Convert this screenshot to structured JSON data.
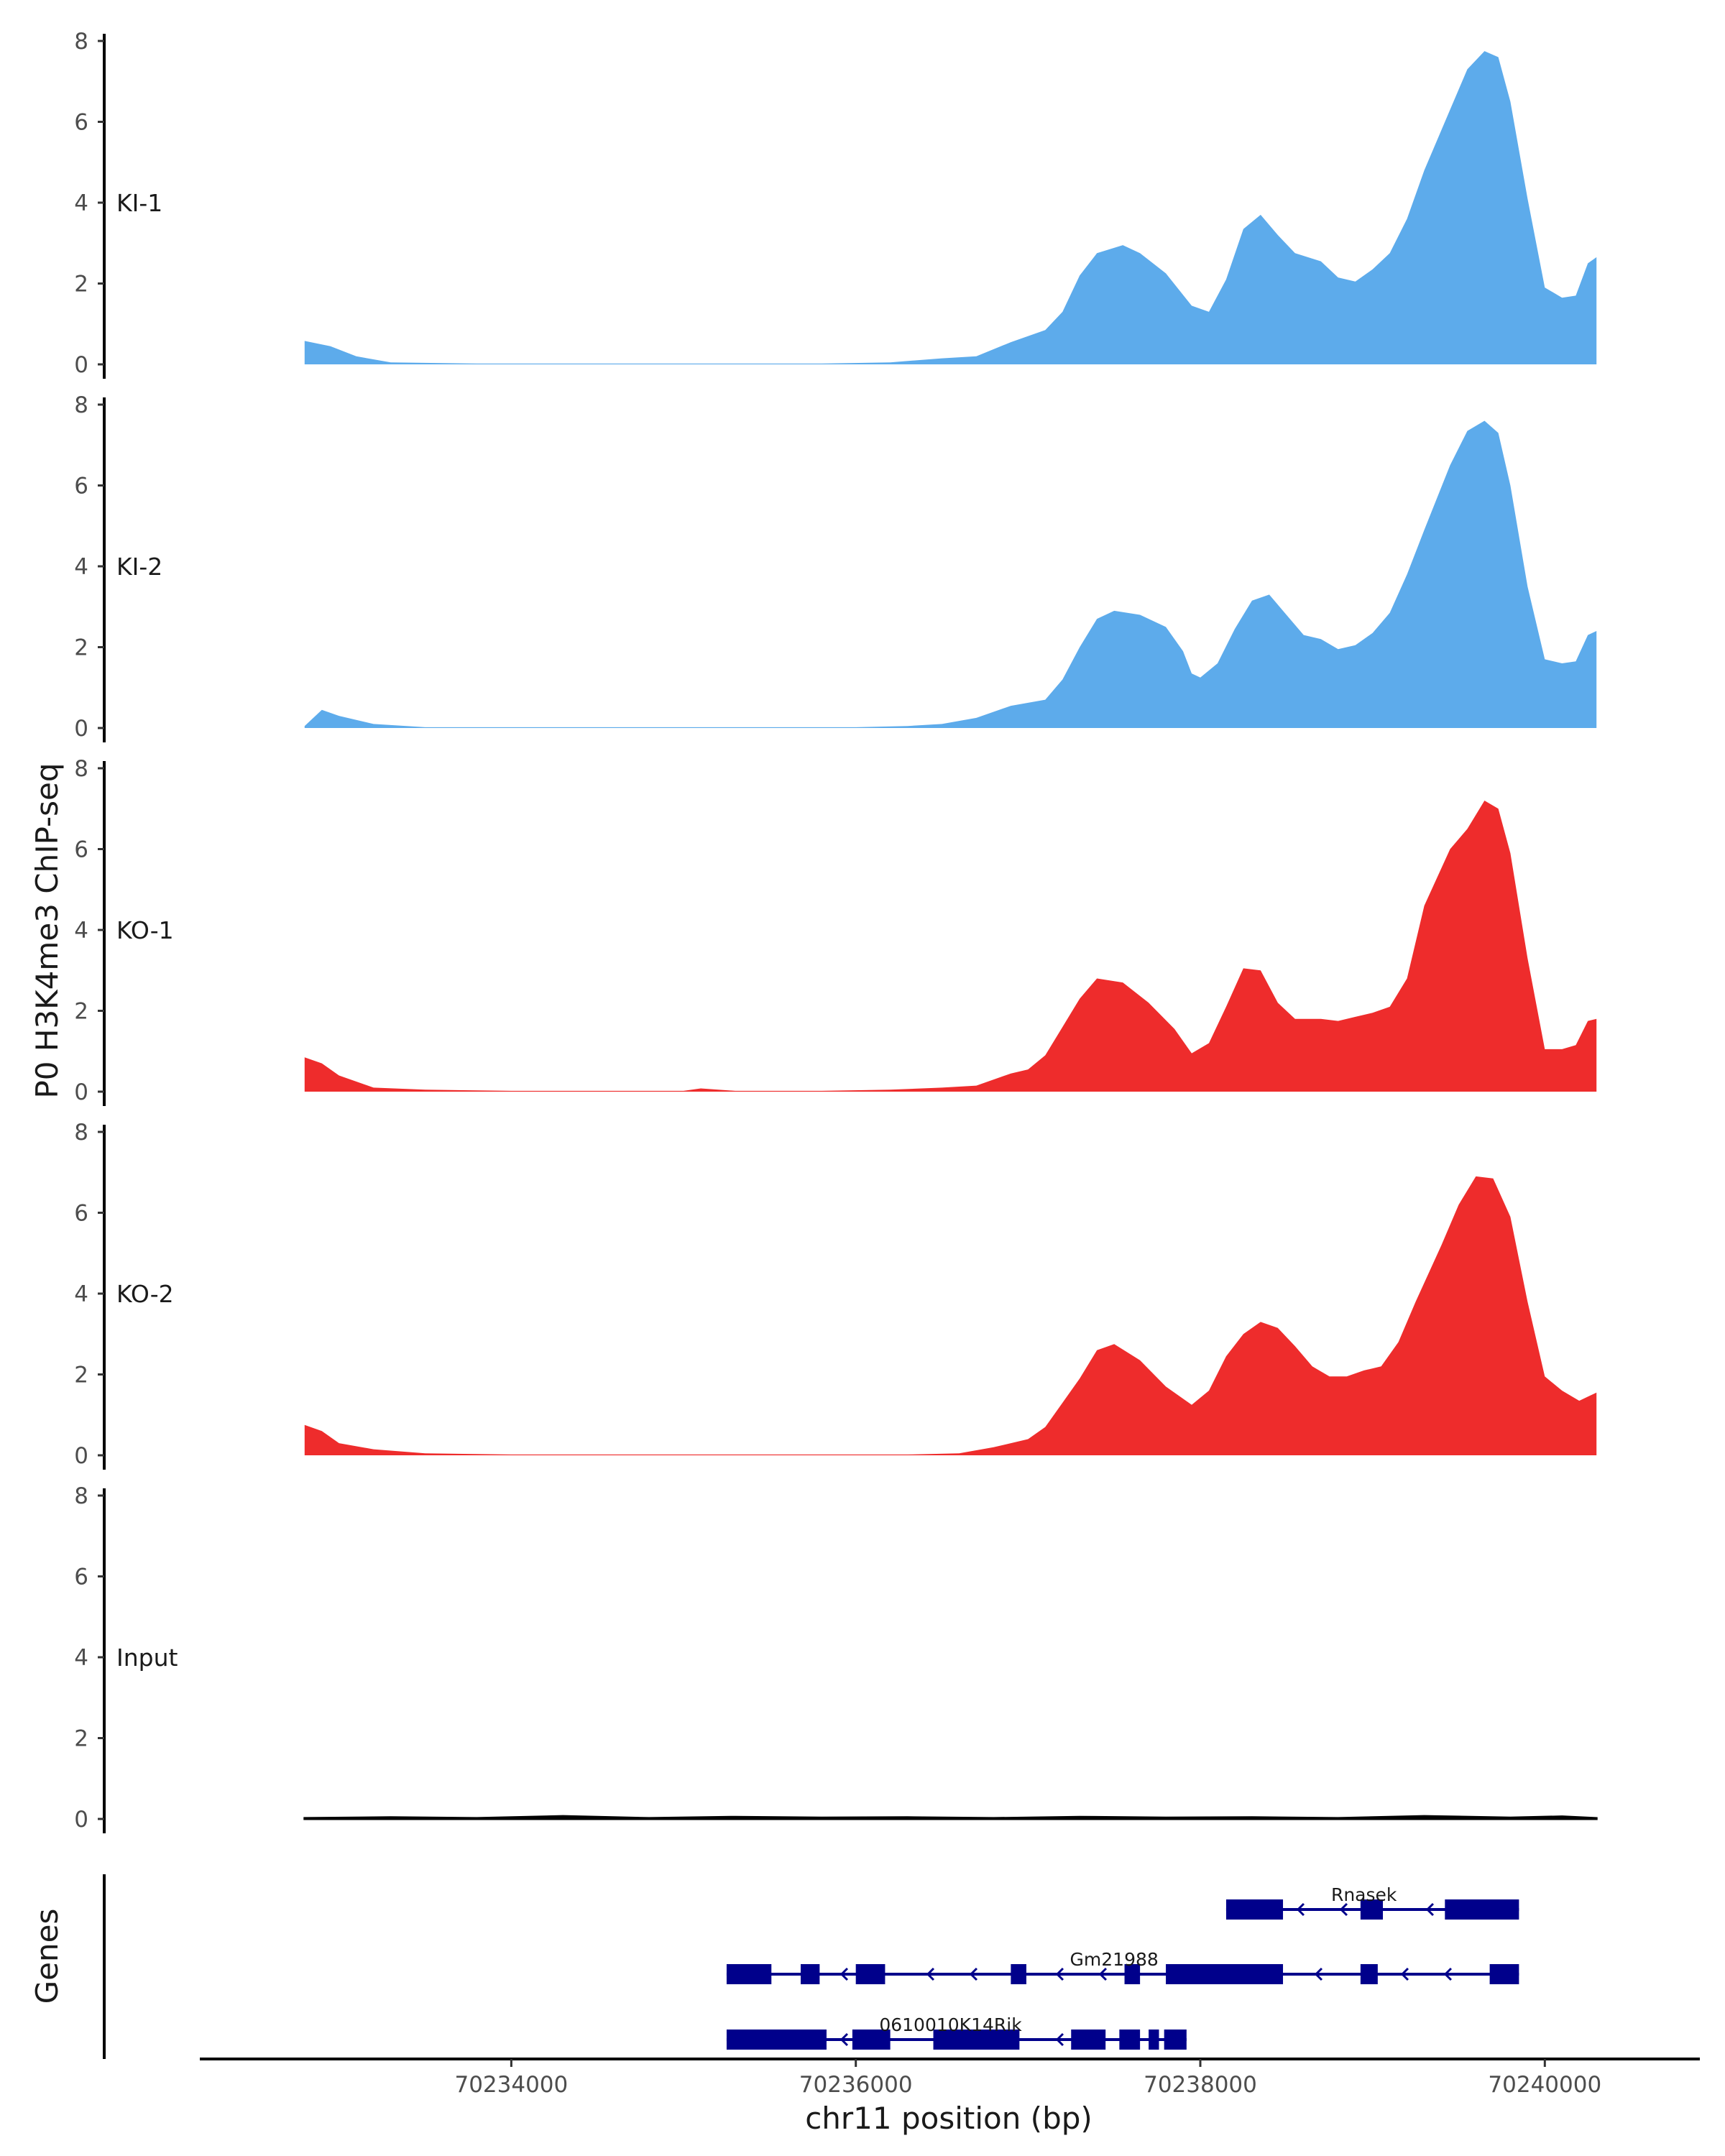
{
  "chart_data": {
    "type": "area",
    "title": "",
    "ylabel": "P0 H3K4me3 ChIP-seq",
    "xlabel": "chr11 position (bp)",
    "gene_track_label": "Genes",
    "ylim": [
      0,
      8
    ],
    "y_ticks": [
      "0",
      "2",
      "4",
      "6",
      "8"
    ],
    "xlim": [
      70232200,
      70240900
    ],
    "x_ticks": [
      70234000,
      70236000,
      70238000,
      70240000
    ],
    "x_tick_labels": [
      "70234000",
      "70236000",
      "70238000",
      "70240000"
    ],
    "data_range": [
      70232800,
      70240300
    ],
    "colors": {
      "KI": "#5dabeb",
      "KO": "#ee2c2c",
      "Input": "#000000",
      "gene": "#00008b"
    },
    "tracks": [
      {
        "name": "KI-1",
        "color": "#5dabeb",
        "points": [
          [
            70232800,
            0.58
          ],
          [
            70232950,
            0.45
          ],
          [
            70233100,
            0.2
          ],
          [
            70233300,
            0.05
          ],
          [
            70233800,
            0.02
          ],
          [
            70234300,
            0.02
          ],
          [
            70234800,
            0.02
          ],
          [
            70235300,
            0.02
          ],
          [
            70235800,
            0.02
          ],
          [
            70236200,
            0.05
          ],
          [
            70236500,
            0.15
          ],
          [
            70236700,
            0.2
          ],
          [
            70236900,
            0.55
          ],
          [
            70237100,
            0.85
          ],
          [
            70237200,
            1.3
          ],
          [
            70237300,
            2.2
          ],
          [
            70237400,
            2.75
          ],
          [
            70237550,
            2.95
          ],
          [
            70237650,
            2.75
          ],
          [
            70237800,
            2.25
          ],
          [
            70237950,
            1.45
          ],
          [
            70238050,
            1.3
          ],
          [
            70238150,
            2.1
          ],
          [
            70238250,
            3.35
          ],
          [
            70238350,
            3.7
          ],
          [
            70238450,
            3.2
          ],
          [
            70238550,
            2.75
          ],
          [
            70238700,
            2.55
          ],
          [
            70238800,
            2.15
          ],
          [
            70238900,
            2.05
          ],
          [
            70239000,
            2.35
          ],
          [
            70239100,
            2.75
          ],
          [
            70239200,
            3.6
          ],
          [
            70239300,
            4.8
          ],
          [
            70239450,
            6.3
          ],
          [
            70239550,
            7.3
          ],
          [
            70239650,
            7.75
          ],
          [
            70239730,
            7.6
          ],
          [
            70239800,
            6.5
          ],
          [
            70239900,
            4.1
          ],
          [
            70240000,
            1.9
          ],
          [
            70240100,
            1.65
          ],
          [
            70240180,
            1.7
          ],
          [
            70240250,
            2.5
          ],
          [
            70240300,
            2.65
          ]
        ]
      },
      {
        "name": "KI-2",
        "color": "#5dabeb",
        "points": [
          [
            70232800,
            0.05
          ],
          [
            70232900,
            0.45
          ],
          [
            70233000,
            0.3
          ],
          [
            70233200,
            0.1
          ],
          [
            70233500,
            0.02
          ],
          [
            70234000,
            0.02
          ],
          [
            70234500,
            0.02
          ],
          [
            70235000,
            0.02
          ],
          [
            70235500,
            0.02
          ],
          [
            70236000,
            0.02
          ],
          [
            70236300,
            0.05
          ],
          [
            70236500,
            0.1
          ],
          [
            70236700,
            0.25
          ],
          [
            70236900,
            0.55
          ],
          [
            70237100,
            0.7
          ],
          [
            70237200,
            1.2
          ],
          [
            70237300,
            2.0
          ],
          [
            70237400,
            2.7
          ],
          [
            70237500,
            2.9
          ],
          [
            70237650,
            2.8
          ],
          [
            70237800,
            2.5
          ],
          [
            70237900,
            1.9
          ],
          [
            70237950,
            1.35
          ],
          [
            70238000,
            1.25
          ],
          [
            70238100,
            1.6
          ],
          [
            70238200,
            2.45
          ],
          [
            70238300,
            3.15
          ],
          [
            70238400,
            3.3
          ],
          [
            70238500,
            2.8
          ],
          [
            70238600,
            2.3
          ],
          [
            70238700,
            2.2
          ],
          [
            70238800,
            1.95
          ],
          [
            70238900,
            2.05
          ],
          [
            70239000,
            2.35
          ],
          [
            70239100,
            2.85
          ],
          [
            70239200,
            3.8
          ],
          [
            70239300,
            4.9
          ],
          [
            70239450,
            6.5
          ],
          [
            70239550,
            7.35
          ],
          [
            70239650,
            7.6
          ],
          [
            70239730,
            7.3
          ],
          [
            70239800,
            6.0
          ],
          [
            70239900,
            3.5
          ],
          [
            70240000,
            1.7
          ],
          [
            70240100,
            1.6
          ],
          [
            70240180,
            1.65
          ],
          [
            70240250,
            2.3
          ],
          [
            70240300,
            2.4
          ]
        ]
      },
      {
        "name": "KO-1",
        "color": "#ee2c2c",
        "points": [
          [
            70232800,
            0.85
          ],
          [
            70232900,
            0.7
          ],
          [
            70233000,
            0.4
          ],
          [
            70233200,
            0.1
          ],
          [
            70233500,
            0.05
          ],
          [
            70234000,
            0.02
          ],
          [
            70234500,
            0.02
          ],
          [
            70235000,
            0.02
          ],
          [
            70235100,
            0.08
          ],
          [
            70235300,
            0.02
          ],
          [
            70235800,
            0.02
          ],
          [
            70236200,
            0.05
          ],
          [
            70236500,
            0.1
          ],
          [
            70236700,
            0.15
          ],
          [
            70236900,
            0.45
          ],
          [
            70237000,
            0.55
          ],
          [
            70237100,
            0.9
          ],
          [
            70237200,
            1.6
          ],
          [
            70237300,
            2.3
          ],
          [
            70237400,
            2.8
          ],
          [
            70237550,
            2.7
          ],
          [
            70237700,
            2.2
          ],
          [
            70237850,
            1.55
          ],
          [
            70237950,
            0.95
          ],
          [
            70238050,
            1.2
          ],
          [
            70238150,
            2.1
          ],
          [
            70238250,
            3.05
          ],
          [
            70238350,
            3.0
          ],
          [
            70238450,
            2.2
          ],
          [
            70238550,
            1.8
          ],
          [
            70238700,
            1.8
          ],
          [
            70238800,
            1.75
          ],
          [
            70238900,
            1.85
          ],
          [
            70239000,
            1.95
          ],
          [
            70239100,
            2.1
          ],
          [
            70239200,
            2.8
          ],
          [
            70239300,
            4.6
          ],
          [
            70239450,
            6.0
          ],
          [
            70239550,
            6.5
          ],
          [
            70239650,
            7.2
          ],
          [
            70239730,
            7.0
          ],
          [
            70239800,
            5.9
          ],
          [
            70239900,
            3.3
          ],
          [
            70240000,
            1.05
          ],
          [
            70240100,
            1.05
          ],
          [
            70240180,
            1.15
          ],
          [
            70240250,
            1.75
          ],
          [
            70240300,
            1.8
          ]
        ]
      },
      {
        "name": "KO-2",
        "color": "#ee2c2c",
        "points": [
          [
            70232800,
            0.75
          ],
          [
            70232900,
            0.6
          ],
          [
            70233000,
            0.3
          ],
          [
            70233200,
            0.15
          ],
          [
            70233500,
            0.05
          ],
          [
            70234000,
            0.02
          ],
          [
            70234500,
            0.02
          ],
          [
            70235000,
            0.02
          ],
          [
            70235500,
            0.02
          ],
          [
            70236000,
            0.02
          ],
          [
            70236300,
            0.02
          ],
          [
            70236600,
            0.05
          ],
          [
            70236800,
            0.2
          ],
          [
            70237000,
            0.4
          ],
          [
            70237100,
            0.7
          ],
          [
            70237200,
            1.3
          ],
          [
            70237300,
            1.9
          ],
          [
            70237400,
            2.6
          ],
          [
            70237500,
            2.75
          ],
          [
            70237650,
            2.35
          ],
          [
            70237800,
            1.7
          ],
          [
            70237950,
            1.25
          ],
          [
            70238050,
            1.6
          ],
          [
            70238150,
            2.45
          ],
          [
            70238250,
            3.0
          ],
          [
            70238350,
            3.3
          ],
          [
            70238450,
            3.15
          ],
          [
            70238550,
            2.7
          ],
          [
            70238650,
            2.2
          ],
          [
            70238750,
            1.95
          ],
          [
            70238850,
            1.95
          ],
          [
            70238950,
            2.1
          ],
          [
            70239050,
            2.2
          ],
          [
            70239150,
            2.8
          ],
          [
            70239250,
            3.8
          ],
          [
            70239400,
            5.2
          ],
          [
            70239500,
            6.2
          ],
          [
            70239600,
            6.9
          ],
          [
            70239700,
            6.85
          ],
          [
            70239800,
            5.9
          ],
          [
            70239900,
            3.8
          ],
          [
            70240000,
            1.95
          ],
          [
            70240100,
            1.6
          ],
          [
            70240200,
            1.35
          ],
          [
            70240250,
            1.45
          ],
          [
            70240300,
            1.55
          ]
        ]
      },
      {
        "name": "Input",
        "color": "#000000",
        "points": [
          [
            70232800,
            0.02
          ],
          [
            70233300,
            0.04
          ],
          [
            70233800,
            0.02
          ],
          [
            70234300,
            0.07
          ],
          [
            70234800,
            0.02
          ],
          [
            70235300,
            0.05
          ],
          [
            70235800,
            0.03
          ],
          [
            70236300,
            0.04
          ],
          [
            70236800,
            0.02
          ],
          [
            70237300,
            0.05
          ],
          [
            70237800,
            0.03
          ],
          [
            70238300,
            0.04
          ],
          [
            70238800,
            0.02
          ],
          [
            70239300,
            0.07
          ],
          [
            70239800,
            0.03
          ],
          [
            70240100,
            0.06
          ],
          [
            70240300,
            0.02
          ]
        ]
      }
    ],
    "genes": [
      {
        "name": "Rnasek",
        "row": 0,
        "start": 70238150,
        "end": 70239850,
        "strand": "-",
        "label_pos": 70238950,
        "exons": [
          [
            70238150,
            70238480
          ],
          [
            70238930,
            70239060
          ],
          [
            70239420,
            70239850
          ]
        ]
      },
      {
        "name": "Gm21988",
        "row": 1,
        "start": 70235250,
        "end": 70239850,
        "strand": "-",
        "label_pos": 70237500,
        "exons": [
          [
            70235250,
            70235510
          ],
          [
            70235680,
            70235790
          ],
          [
            70236000,
            70236170
          ],
          [
            70236900,
            70236990
          ],
          [
            70237560,
            70237650
          ],
          [
            70237800,
            70238480
          ],
          [
            70238930,
            70239030
          ],
          [
            70239680,
            70239850
          ]
        ]
      },
      {
        "name": "0610010K14Rik",
        "row": 2,
        "start": 70235250,
        "end": 70237920,
        "strand": "-",
        "label_pos": 70236550,
        "exons": [
          [
            70235250,
            70235830
          ],
          [
            70235980,
            70236200
          ],
          [
            70236450,
            70236950
          ],
          [
            70237250,
            70237450
          ],
          [
            70237530,
            70237650
          ],
          [
            70237700,
            70237760
          ],
          [
            70237790,
            70237920
          ]
        ]
      }
    ]
  }
}
